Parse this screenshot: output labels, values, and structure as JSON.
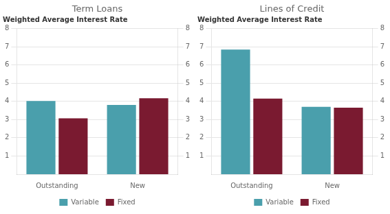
{
  "chart_data": [
    {
      "type": "bar",
      "title": "Term Loans",
      "ylabel": "Weighted Average Interest Rate",
      "categories": [
        "Outstanding",
        "New"
      ],
      "series": [
        {
          "name": "Variable",
          "color": "#4a9fac",
          "values": [
            4.02,
            3.8
          ]
        },
        {
          "name": "Fixed",
          "color": "#7a1a30",
          "values": [
            3.07,
            4.17
          ]
        }
      ],
      "ylim": [
        0,
        8
      ],
      "yticks": [
        1,
        2,
        3,
        4,
        5,
        6,
        7,
        8
      ],
      "y2lim": [
        0,
        8
      ],
      "y2ticks": [
        1,
        2,
        3,
        4,
        5,
        6,
        7,
        8
      ],
      "grid": true,
      "legend": "bottom"
    },
    {
      "type": "bar",
      "title": "Lines of Credit",
      "ylabel": "Weighted Average Interest Rate",
      "categories": [
        "Outstanding",
        "New"
      ],
      "series": [
        {
          "name": "Variable",
          "color": "#4a9fac",
          "values": [
            6.85,
            3.7
          ]
        },
        {
          "name": "Fixed",
          "color": "#7a1a30",
          "values": [
            4.15,
            3.65
          ]
        }
      ],
      "ylim": [
        0,
        8
      ],
      "yticks": [
        1,
        2,
        3,
        4,
        5,
        6,
        7,
        8
      ],
      "y2lim": [
        0,
        8
      ],
      "y2ticks": [
        1,
        2,
        3,
        4,
        5,
        6,
        7,
        8
      ],
      "grid": true,
      "legend": "bottom"
    }
  ]
}
